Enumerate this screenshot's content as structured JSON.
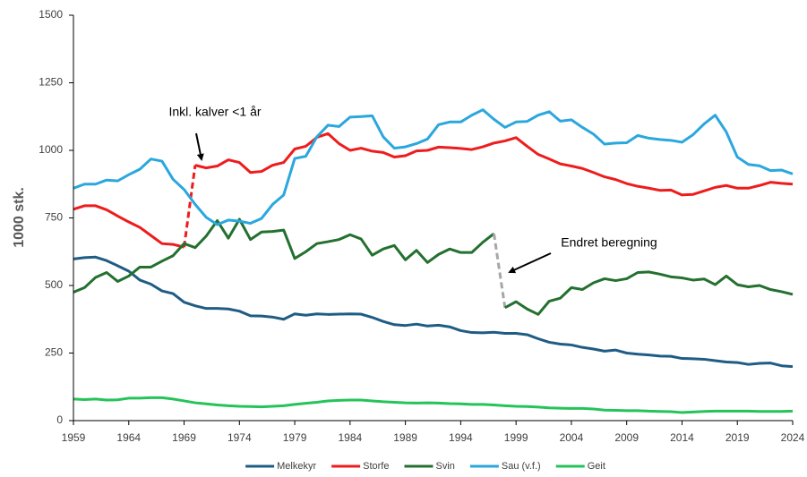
{
  "chart_data": {
    "type": "line",
    "y_label": "1000 stk.",
    "x": [
      1959,
      1960,
      1961,
      1962,
      1963,
      1964,
      1965,
      1966,
      1967,
      1968,
      1969,
      1970,
      1971,
      1972,
      1973,
      1974,
      1975,
      1976,
      1977,
      1978,
      1979,
      1980,
      1981,
      1982,
      1983,
      1984,
      1985,
      1986,
      1987,
      1988,
      1989,
      1990,
      1991,
      1992,
      1993,
      1994,
      1995,
      1996,
      1997,
      1998,
      1999,
      2000,
      2001,
      2002,
      2003,
      2004,
      2005,
      2006,
      2007,
      2008,
      2009,
      2010,
      2011,
      2012,
      2013,
      2014,
      2015,
      2016,
      2017,
      2018,
      2019,
      2020,
      2021,
      2022,
      2023,
      2024
    ],
    "xlim": [
      1959,
      2024
    ],
    "xticks": [
      1959,
      1964,
      1969,
      1974,
      1979,
      1984,
      1989,
      1994,
      1999,
      2004,
      2009,
      2014,
      2019,
      2024
    ],
    "ylim": [
      0,
      1500
    ],
    "yticks": [
      0,
      250,
      500,
      750,
      1000,
      1250,
      1500
    ],
    "grid": false,
    "legend": "bottom",
    "series": [
      {
        "name": "Melkekyr",
        "color": "#1f5c85",
        "values": [
          598,
          603,
          605,
          592,
          573,
          553,
          520,
          505,
          480,
          470,
          438,
          425,
          415,
          415,
          413,
          405,
          388,
          387,
          383,
          375,
          395,
          390,
          395,
          393,
          394,
          395,
          394,
          382,
          367,
          355,
          352,
          357,
          350,
          353,
          347,
          333,
          326,
          325,
          327,
          323,
          323,
          318,
          303,
          290,
          283,
          280,
          271,
          265,
          257,
          261,
          250,
          246,
          243,
          239,
          238,
          230,
          229,
          227,
          222,
          217,
          215,
          208,
          212,
          213,
          203,
          200
        ]
      },
      {
        "name": "Storfe",
        "color": "#ee1c1c",
        "dashed_segment_from": 1969,
        "values": [
          782,
          795,
          795,
          780,
          757,
          735,
          715,
          685,
          655,
          652,
          642,
          945,
          935,
          942,
          965,
          955,
          918,
          922,
          945,
          955,
          1005,
          1015,
          1048,
          1062,
          1025,
          1000,
          1008,
          997,
          992,
          975,
          980,
          998,
          1000,
          1012,
          1010,
          1007,
          1003,
          1013,
          1027,
          1035,
          1047,
          1015,
          985,
          968,
          950,
          942,
          933,
          918,
          902,
          892,
          877,
          867,
          860,
          852,
          853,
          835,
          837,
          850,
          863,
          870,
          860,
          860,
          870,
          882,
          878,
          875
        ]
      },
      {
        "name": "Svin",
        "color": "#23702f",
        "dashed_segment_from": 1997,
        "dashed_color": "#a6a6a6",
        "values": [
          475,
          492,
          530,
          548,
          515,
          535,
          568,
          568,
          590,
          610,
          655,
          640,
          683,
          740,
          675,
          745,
          670,
          698,
          700,
          705,
          600,
          625,
          655,
          662,
          670,
          688,
          672,
          612,
          635,
          648,
          595,
          630,
          585,
          615,
          635,
          622,
          622,
          660,
          692,
          418,
          440,
          413,
          393,
          442,
          453,
          492,
          485,
          510,
          525,
          518,
          525,
          548,
          550,
          542,
          532,
          528,
          520,
          524,
          503,
          535,
          503,
          495,
          500,
          485,
          477,
          467
        ]
      },
      {
        "name": "Sau (v.f.)",
        "color": "#2aa7de",
        "values": [
          860,
          875,
          875,
          890,
          887,
          910,
          930,
          968,
          960,
          893,
          855,
          800,
          752,
          725,
          742,
          738,
          730,
          748,
          800,
          835,
          970,
          978,
          1050,
          1093,
          1088,
          1123,
          1125,
          1128,
          1050,
          1008,
          1013,
          1025,
          1042,
          1095,
          1105,
          1105,
          1130,
          1150,
          1115,
          1085,
          1105,
          1107,
          1130,
          1143,
          1108,
          1113,
          1085,
          1060,
          1023,
          1027,
          1028,
          1055,
          1045,
          1040,
          1037,
          1030,
          1058,
          1098,
          1130,
          1068,
          975,
          948,
          943,
          925,
          927,
          913
        ]
      },
      {
        "name": "Geit",
        "color": "#25c35a",
        "values": [
          80,
          78,
          80,
          76,
          77,
          83,
          83,
          85,
          85,
          80,
          73,
          66,
          62,
          58,
          55,
          53,
          52,
          51,
          53,
          55,
          60,
          64,
          68,
          73,
          75,
          76,
          76,
          73,
          70,
          68,
          66,
          65,
          66,
          65,
          63,
          62,
          60,
          60,
          58,
          55,
          53,
          52,
          50,
          47,
          46,
          45,
          45,
          43,
          39,
          38,
          37,
          37,
          35,
          34,
          33,
          30,
          32,
          34,
          35,
          35,
          35,
          35,
          34,
          34,
          34,
          35
        ]
      }
    ],
    "annotations": [
      "Inkl. kalver <1 år",
      "Endret beregning"
    ]
  }
}
